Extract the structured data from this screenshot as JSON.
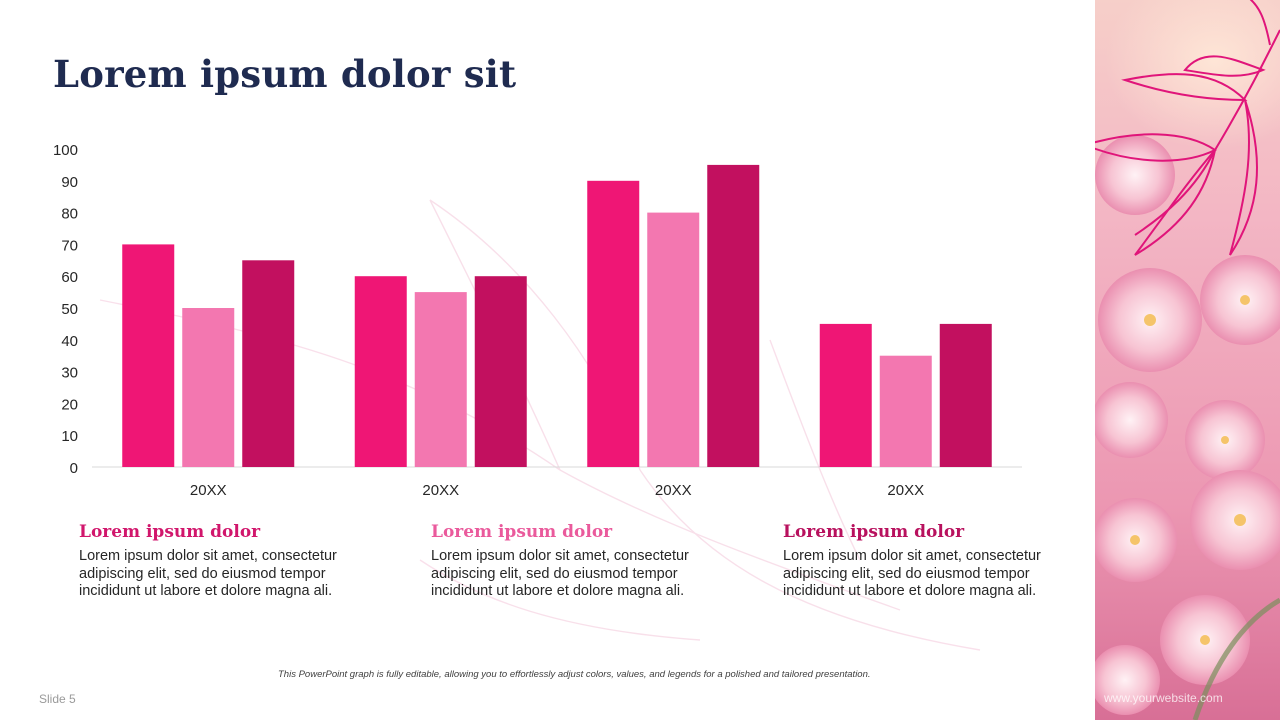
{
  "slide": {
    "title": "Lorem ipsum dolor sit",
    "slide_number": "Slide 5",
    "caption": "This PowerPoint graph is fully editable, allowing you to effortlessly adjust colors, values, and legends for a polished and tailored presentation.",
    "website": "www.yourwebsite.com"
  },
  "columns": [
    {
      "heading": "Lorem ipsum dolor",
      "body": "Lorem ipsum dolor sit amet, consectetur adipiscing elit, sed do eiusmod tempor incididunt ut labore et dolore magna ali."
    },
    {
      "heading": "Lorem ipsum dolor",
      "body": "Lorem ipsum dolor sit amet, consectetur adipiscing elit, sed do eiusmod tempor incididunt ut labore et dolore magna ali."
    },
    {
      "heading": "Lorem ipsum dolor",
      "body": "Lorem ipsum dolor sit amet, consectetur adipiscing elit, sed do eiusmod tempor incididunt ut labore et dolore magna ali."
    }
  ],
  "colors": {
    "series_1": "#ef1675",
    "series_2": "#f377b0",
    "series_3": "#c2105f",
    "heading_1": "#d1166c",
    "heading_2": "#ea5a9c",
    "heading_3": "#b8115e",
    "title": "#1f2b50"
  },
  "chart_data": {
    "type": "bar",
    "categories": [
      "20XX",
      "20XX",
      "20XX",
      "20XX"
    ],
    "series": [
      {
        "values": [
          70,
          60,
          90,
          45
        ]
      },
      {
        "values": [
          50,
          55,
          80,
          35
        ]
      },
      {
        "values": [
          65,
          60,
          95,
          45
        ]
      }
    ],
    "ylim": [
      0,
      100
    ],
    "yticks": [
      0,
      10,
      20,
      30,
      40,
      50,
      60,
      70,
      80,
      90,
      100
    ],
    "grid": false,
    "legend": "none"
  }
}
